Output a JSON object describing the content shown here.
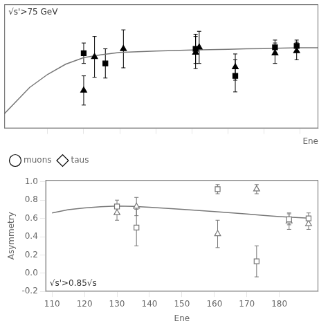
{
  "chart_data": [
    {
      "type": "scatter",
      "annotation": "√s'>75 GeV",
      "x_label": "Ene",
      "xlim": [
        108,
        195
      ],
      "ylim": [
        -0.7,
        0.15
      ],
      "xticks": [
        120,
        130,
        140,
        150,
        160,
        170,
        180,
        190
      ],
      "tick_labels": false,
      "grid": false,
      "legend": "lower left",
      "series": [
        {
          "type": "line",
          "color": "#777777",
          "x": [
            108,
            115,
            120,
            125,
            130,
            135,
            140,
            145,
            150,
            155,
            160,
            165,
            170,
            175,
            180,
            185,
            190,
            195
          ],
          "values": [
            -0.6,
            -0.42,
            -0.33,
            -0.26,
            -0.215,
            -0.195,
            -0.18,
            -0.175,
            -0.17,
            -0.167,
            -0.163,
            -0.16,
            -0.158,
            -0.155,
            -0.153,
            -0.15,
            -0.148,
            -0.147
          ]
        },
        {
          "type": "scatter",
          "marker": "triangle",
          "color": "#000000",
          "x": [
            130,
            133,
            141,
            161,
            162,
            172,
            183,
            189
          ],
          "values": [
            -0.44,
            -0.21,
            -0.155,
            -0.18,
            -0.145,
            -0.28,
            -0.185,
            -0.17
          ],
          "yerr_lo": [
            0.1,
            0.14,
            0.13,
            0.11,
            0.11,
            0.09,
            0.07,
            0.06
          ],
          "yerr_hi": [
            0.1,
            0.14,
            0.13,
            0.11,
            0.11,
            0.09,
            0.07,
            0.06
          ]
        },
        {
          "type": "scatter",
          "marker": "square",
          "color": "#000000",
          "x": [
            130,
            136,
            161,
            172,
            183,
            189
          ],
          "values": [
            -0.185,
            -0.255,
            -0.155,
            -0.34,
            -0.145,
            -0.135
          ],
          "yerr_lo": [
            0.07,
            0.1,
            0.1,
            0.11,
            0.05,
            0.04
          ],
          "yerr_hi": [
            0.07,
            0.1,
            0.1,
            0.11,
            0.05,
            0.04
          ]
        },
        {
          "type": "scatter",
          "name": "muons",
          "marker": "open-circle",
          "color": "#000000",
          "x": [],
          "values": []
        },
        {
          "type": "scatter",
          "name": "taus",
          "marker": "open-diamond",
          "color": "#000000",
          "x": [],
          "values": []
        }
      ]
    },
    {
      "type": "scatter",
      "annotation": "√s'>0.85√s",
      "x_label": "Ene",
      "y_label": "Asymmetry",
      "xlim": [
        108,
        192
      ],
      "ylim": [
        -0.2,
        1.02
      ],
      "xticks": [
        110,
        120,
        130,
        140,
        150,
        160,
        170,
        180
      ],
      "yticks": [
        -0.2,
        {
          "value": 0,
          "label": "0.0"
        },
        0.2,
        0.4,
        0.6,
        0.8,
        {
          "value": 1,
          "label": "1.0"
        }
      ],
      "grid": false,
      "series": [
        {
          "type": "line",
          "color": "#777777",
          "x": [
            110,
            115,
            120,
            125,
            130,
            135,
            140,
            150,
            160,
            170,
            175,
            180,
            185,
            189
          ],
          "values": [
            0.66,
            0.695,
            0.715,
            0.728,
            0.735,
            0.732,
            0.722,
            0.7,
            0.675,
            0.648,
            0.633,
            0.62,
            0.61,
            0.603
          ]
        },
        {
          "type": "scatter",
          "marker": "open-square",
          "color": "#777777",
          "x": [
            130,
            136,
            161,
            173,
            183,
            189
          ],
          "values": [
            0.73,
            0.5,
            0.92,
            0.13,
            0.59,
            0.6
          ],
          "yerr_lo": [
            0.07,
            0.2,
            0.05,
            0.17,
            0.06,
            0.06
          ],
          "yerr_hi": [
            0.07,
            0.2,
            0.05,
            0.17,
            0.06,
            0.06
          ]
        },
        {
          "type": "scatter",
          "marker": "open-triangle",
          "color": "#777777",
          "x": [
            130,
            136,
            161,
            173,
            183,
            189
          ],
          "values": [
            0.66,
            0.73,
            0.43,
            0.92,
            0.57,
            0.54
          ],
          "yerr_lo": [
            0.08,
            0.1,
            0.15,
            0.05,
            0.09,
            0.06
          ],
          "yerr_hi": [
            0.08,
            0.1,
            0.15,
            0.05,
            0.09,
            0.06
          ]
        }
      ]
    }
  ]
}
